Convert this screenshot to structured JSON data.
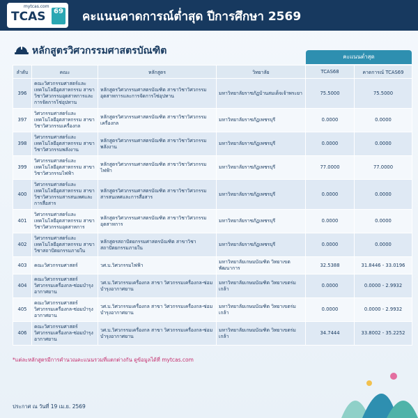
{
  "header": {
    "logo_site": "mytcas.com",
    "logo_text": "TCAS",
    "logo_number": "69",
    "title": "คะแนนคาดการณ์ต่ำสุด ปีการศึกษา 2569"
  },
  "section_title": "หลักสูตรวิศวกรรมศาสตรบัณฑิต",
  "table": {
    "group_header": "คะแนนต่ำสุด",
    "columns": [
      "ลำดับ",
      "คณะ",
      "หลักสูตร",
      "วิทยาลัย",
      "TCAS68",
      "คาดการณ์ TCAS69"
    ],
    "rows": [
      [
        "396",
        "คณะวิศวกรรมศาสตร์และเทคโนโลยีอุตสาหกรรม สาขาวิชาวิศวกรรมอุตสาหการและการจัดการโซ่อุปทาน",
        "หลักสูตรวิศวกรรมศาสตรบัณฑิต สาขาวิชาวิศวกรรมอุตสาหการและการจัดการโซ่อุปทาน",
        "มหาวิทยาลัยราชภัฏบ้านสมเด็จเจ้าพระยา",
        "75.5000",
        "75.5000"
      ],
      [
        "397",
        "วิศวกรรมศาสตร์และเทคโนโลยีอุตสาหกรรม สาขาวิชาวิศวกรรมเครื่องกล",
        "หลักสูตรวิศวกรรมศาสตรบัณฑิต สาขาวิชาวิศวกรรมเครื่องกล",
        "มหาวิทยาลัยราชภัฏเพชรบุรี",
        "0.0000",
        "0.0000"
      ],
      [
        "398",
        "วิศวกรรมศาสตร์และเทคโนโลยีอุตสาหกรรม สาขาวิชาวิศวกรรมพลังงาน",
        "หลักสูตรวิศวกรรมศาสตรบัณฑิต สาขาวิชาวิศวกรรมพลังงาน",
        "มหาวิทยาลัยราชภัฏเพชรบุรี",
        "0.0000",
        "0.0000"
      ],
      [
        "399",
        "วิศวกรรมศาสตร์และเทคโนโลยีอุตสาหกรรม สาขาวิชาวิศวกรรมไฟฟ้า",
        "หลักสูตรวิศวกรรมศาสตรบัณฑิต สาขาวิชาวิศวกรรมไฟฟ้า",
        "มหาวิทยาลัยราชภัฏเพชรบุรี",
        "77.0000",
        "77.0000"
      ],
      [
        "400",
        "วิศวกรรมศาสตร์และเทคโนโลยีอุตสาหกรรม สาขาวิชาวิศวกรรมสารสนเทศและการสื่อสาร",
        "หลักสูตรวิศวกรรมศาสตรบัณฑิต สาขาวิชาวิศวกรรมสารสนเทศและการสื่อสาร",
        "มหาวิทยาลัยราชภัฏเพชรบุรี",
        "0.0000",
        "0.0000"
      ],
      [
        "401",
        "วิศวกรรมศาสตร์และเทคโนโลยีอุตสาหกรรม สาขาวิชาวิศวกรรมอุตสาหการ",
        "หลักสูตรวิศวกรรมศาสตรบัณฑิต สาขาวิชาวิศวกรรมอุตสาหการ",
        "มหาวิทยาลัยราชภัฏเพชรบุรี",
        "0.0000",
        "0.0000"
      ],
      [
        "402",
        "วิศวกรรมศาสตร์และเทคโนโลยีอุตสาหกรรม สาขาวิชาสถาปัตยกรรมภายใน",
        "หลักสูตรสถาปัตยกรรมศาสตรบัณฑิต สาขาวิชาสถาปัตยกรรมภายใน",
        "มหาวิทยาลัยราชภัฏเพชรบุรี",
        "0.0000",
        "0.0000"
      ],
      [
        "403",
        "คณะวิศวกรรมศาสตร์",
        "วศ.บ.วิศวกรรมไฟฟ้า",
        "มหาวิทยาลัยเกษมบัณฑิต วิทยาเขตพัฒนาการ",
        "32.5388",
        "31.8446 - 33.0196"
      ],
      [
        "404",
        "คณะวิศวกรรมศาสตร์ วิศวกรรมเครื่องกล-ซ่อมบำรุงอากาศยาน",
        "วศ.บ.วิศวกรรมเครื่องกล สาขา วิศวกรรมเครื่องกล-ซ่อมบำรุงอากาศยาน",
        "มหาวิทยาลัยเกษมบัณฑิต วิทยาเขตร่มเกล้า",
        "0.0000",
        "0.0000 - 2.9932"
      ],
      [
        "405",
        "คณะวิศวกรรมศาสตร์ วิศวกรรมเครื่องกล-ซ่อมบำรุงอากาศยาน",
        "วศ.บ.วิศวกรรมเครื่องกล สาขา วิศวกรรมเครื่องกล-ซ่อมบำรุงอากาศยาน",
        "มหาวิทยาลัยเกษมบัณฑิต วิทยาเขตร่มเกล้า",
        "0.0000",
        "0.0000 - 2.9932"
      ],
      [
        "406",
        "คณะวิศวกรรมศาสตร์ วิศวกรรมเครื่องกล-ซ่อมบำรุงอากาศยาน",
        "วศ.บ.วิศวกรรมเครื่องกล สาขา วิศวกรรมเครื่องกล-ซ่อมบำรุงอากาศยาน",
        "มหาวิทยาลัยเกษมบัณฑิต วิทยาเขตร่มเกล้า",
        "34.7444",
        "33.8002 - 35.2252"
      ]
    ]
  },
  "footnote": "*แต่ละหลักสูตรมีการคำนวณคะแนนรวมที่แตกต่างกัน ดูข้อมูลได้ที่ mytcas.com",
  "announcement_date": "ประกาศ ณ วันที่ 19 เม.ย. 2569"
}
